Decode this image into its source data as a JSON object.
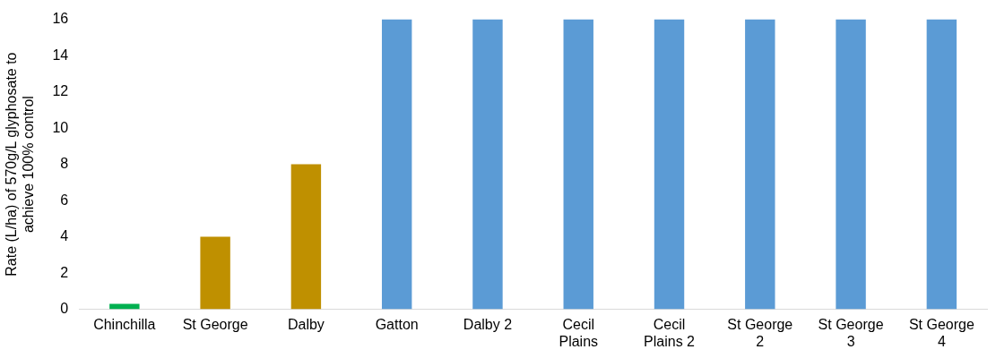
{
  "chart_data": {
    "type": "bar",
    "ylabel": "Rate (L/ha) of 570g/L glyphosate to achieve 100% control",
    "categories": [
      "Chinchilla",
      "St George",
      "Dalby",
      "Gatton",
      "Dalby 2",
      "Cecil Plains",
      "Cecil Plains 2",
      "St George 2",
      "St George 3",
      "St George 4"
    ],
    "values": [
      0.3,
      4,
      8,
      16,
      16,
      16,
      16,
      16,
      16,
      16
    ],
    "colors": [
      "#00b050",
      "#bf9000",
      "#bf9000",
      "#5b9bd5",
      "#5b9bd5",
      "#5b9bd5",
      "#5b9bd5",
      "#5b9bd5",
      "#5b9bd5",
      "#5b9bd5"
    ],
    "ylim": [
      0,
      16
    ],
    "yticks": [
      0,
      2,
      4,
      6,
      8,
      10,
      12,
      14,
      16
    ],
    "grid": false,
    "legend": false
  }
}
